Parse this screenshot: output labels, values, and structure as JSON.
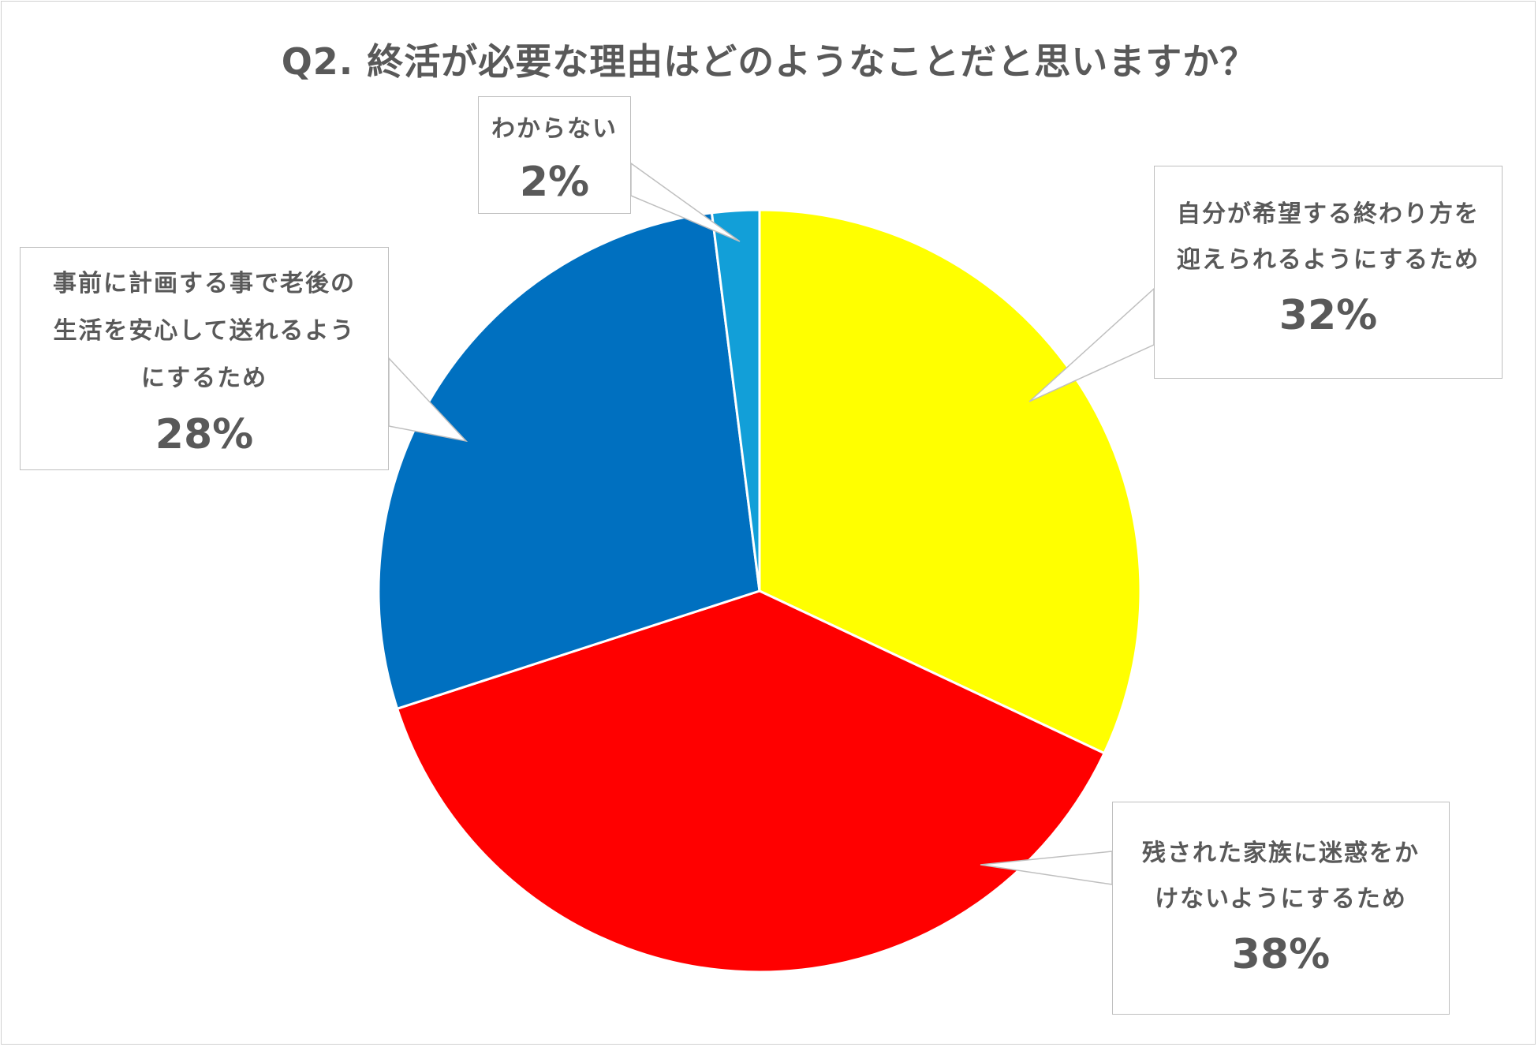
{
  "chart_data": {
    "type": "pie",
    "title": "Q2. 終活が必要な理由はどのようなことだと思いますか？",
    "slices": [
      {
        "label_lines": [
          "自分が希望する終わり方を",
          "迎えられるようにするため"
        ],
        "value": 32,
        "value_label": "32%",
        "color": "#FFFF00"
      },
      {
        "label_lines": [
          "残された家族に迷惑をか",
          "けないようにするため"
        ],
        "value": 38,
        "value_label": "38%",
        "color": "#FF0000"
      },
      {
        "label_lines": [
          "事前に計画する事で老後の",
          "生活を安心して送れるよう",
          "にするため"
        ],
        "value": 28,
        "value_label": "28%",
        "color": "#0070C0"
      },
      {
        "label_lines": [
          "わからない"
        ],
        "value": 2,
        "value_label": "2%",
        "color": "#129FD8"
      }
    ],
    "start_angle_deg": 0,
    "direction": "clockwise",
    "legend": "none",
    "data_labels": "callouts"
  }
}
